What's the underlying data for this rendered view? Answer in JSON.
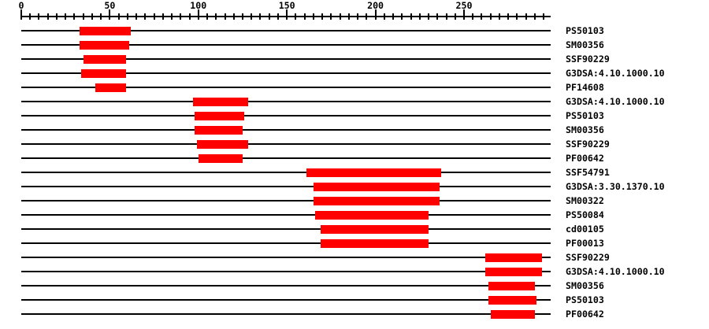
{
  "figure": {
    "background_color": "#ffffff",
    "bar_color": "#ff0000",
    "line_color": "#000000",
    "text_color": "#000000"
  },
  "chart_data": {
    "type": "domain-architecture-track",
    "title": "",
    "xlabel": "",
    "ylabel": "",
    "axis": {
      "min": 0,
      "max": 299,
      "minor_tick_step": 5,
      "major_tick_step": 50,
      "major_ticks": [
        {
          "value": 0,
          "label": "0"
        },
        {
          "value": 50,
          "label": "50"
        },
        {
          "value": 100,
          "label": "100"
        },
        {
          "value": 150,
          "label": "150"
        },
        {
          "value": 200,
          "label": "200"
        },
        {
          "value": 250,
          "label": "250"
        }
      ],
      "grid": false,
      "legend": "none"
    },
    "tracks": [
      {
        "label": "PS50103",
        "start": 33,
        "end": 62
      },
      {
        "label": "SM00356",
        "start": 33,
        "end": 61
      },
      {
        "label": "SSF90229",
        "start": 35,
        "end": 59
      },
      {
        "label": "G3DSA:4.10.1000.10",
        "start": 34,
        "end": 59
      },
      {
        "label": "PF14608",
        "start": 42,
        "end": 59
      },
      {
        "label": "G3DSA:4.10.1000.10",
        "start": 97,
        "end": 128
      },
      {
        "label": "PS50103",
        "start": 98,
        "end": 126
      },
      {
        "label": "SM00356",
        "start": 98,
        "end": 125
      },
      {
        "label": "SSF90229",
        "start": 99,
        "end": 128
      },
      {
        "label": "PF00642",
        "start": 100,
        "end": 125
      },
      {
        "label": "SSF54791",
        "start": 161,
        "end": 237
      },
      {
        "label": "G3DSA:3.30.1370.10",
        "start": 165,
        "end": 236
      },
      {
        "label": "SM00322",
        "start": 165,
        "end": 236
      },
      {
        "label": "PS50084",
        "start": 166,
        "end": 230
      },
      {
        "label": "cd00105",
        "start": 169,
        "end": 230
      },
      {
        "label": "PF00013",
        "start": 169,
        "end": 230
      },
      {
        "label": "SSF90229",
        "start": 262,
        "end": 294
      },
      {
        "label": "G3DSA:4.10.1000.10",
        "start": 262,
        "end": 294
      },
      {
        "label": "SM00356",
        "start": 264,
        "end": 290
      },
      {
        "label": "PS50103",
        "start": 264,
        "end": 291
      },
      {
        "label": "PF00642",
        "start": 265,
        "end": 290
      }
    ]
  }
}
